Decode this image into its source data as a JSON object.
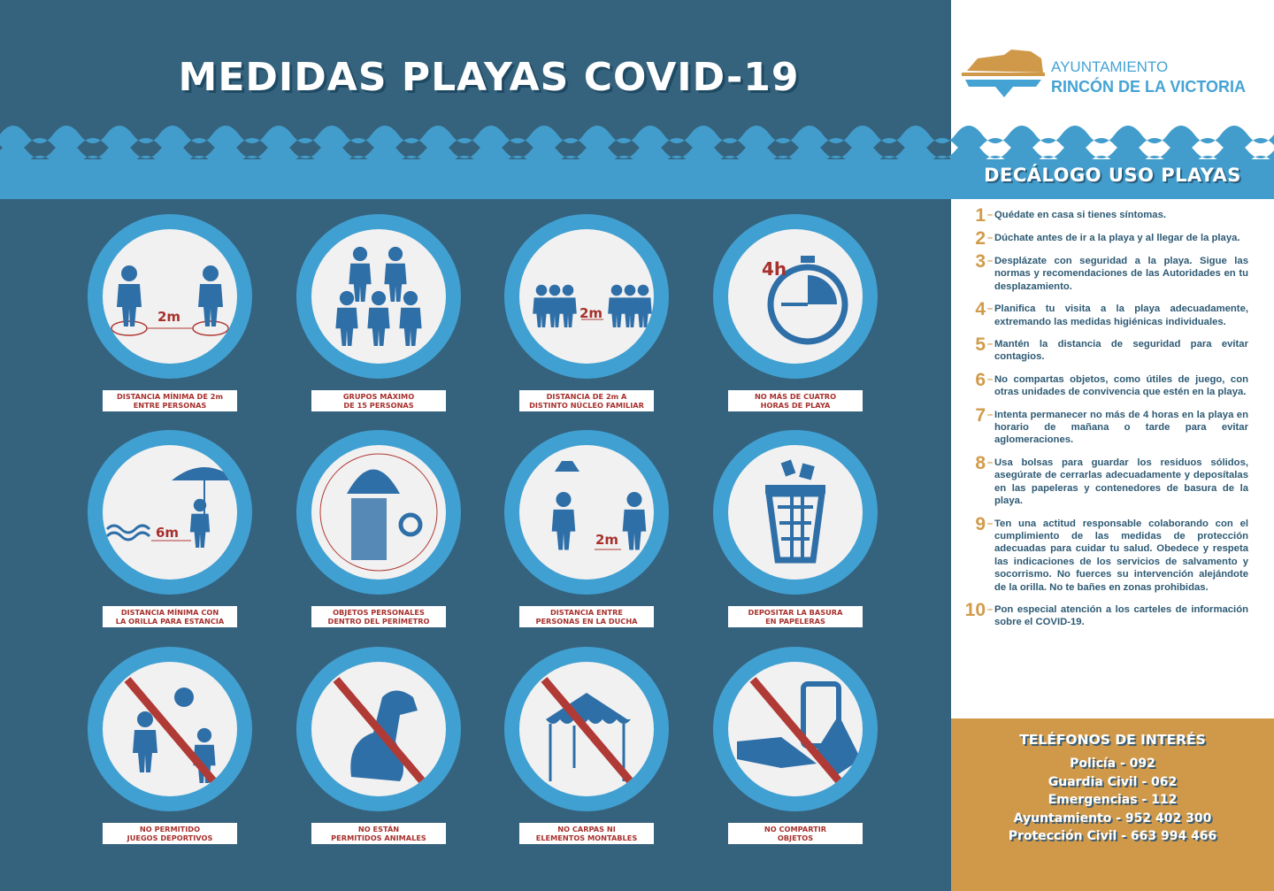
{
  "title": "MEDIDAS PLAYAS COVID-19",
  "logo": {
    "line1": "AYUNTAMIENTO",
    "line2": "RINCÓN DE LA VICTORIA"
  },
  "sidebar_title": "DECÁLOGO USO PLAYAS",
  "colors": {
    "background": "#35637e",
    "accent_blue": "#41a0d2",
    "gold": "#d0994a",
    "label_red": "#a7312d",
    "text": "#2d5a74"
  },
  "measures": [
    {
      "icon": "distance-2m-icon",
      "label1": "DISTANCIA MÍNIMA DE 2m",
      "label2": "ENTRE PERSONAS",
      "tag": "2m"
    },
    {
      "icon": "group-icon",
      "label1": "GRUPOS MÁXIMO",
      "label2": "DE 15 PERSONAS"
    },
    {
      "icon": "family-distance-icon",
      "label1": "DISTANCIA DE 2m A",
      "label2": "DISTINTO NÚCLEO FAMILIAR",
      "tag": "2m"
    },
    {
      "icon": "stopwatch-icon",
      "label1": "NO MÁS DE CUATRO",
      "label2": "HORAS DE PLAYA",
      "tag": "4h"
    },
    {
      "icon": "umbrella-shore-icon",
      "label1": "DISTANCIA MÍNIMA CON",
      "label2": "LA ORILLA PARA ESTANCIA",
      "tag": "6m"
    },
    {
      "icon": "personal-items-icon",
      "label1": "OBJETOS PERSONALES",
      "label2": "DENTRO DEL PERÍMETRO"
    },
    {
      "icon": "shower-distance-icon",
      "label1": "DISTANCIA ENTRE",
      "label2": "PERSONAS EN LA DUCHA",
      "tag": "2m"
    },
    {
      "icon": "trash-bin-icon",
      "label1": "DEPOSITAR LA BASURA",
      "label2": "EN PAPELERAS"
    },
    {
      "icon": "no-ball-games-icon",
      "label1": "NO PERMITIDO",
      "label2": "JUEGOS DEPORTIVOS"
    },
    {
      "icon": "no-dogs-icon",
      "label1": "NO ESTÁN",
      "label2": "PERMITIDOS ANIMALES"
    },
    {
      "icon": "no-tents-icon",
      "label1": "NO CARPAS NI",
      "label2": "ELEMENTOS MONTABLES"
    },
    {
      "icon": "no-sharing-icon",
      "label1": "NO COMPARTIR",
      "label2": "OBJETOS"
    }
  ],
  "decalogue": [
    {
      "n": "1",
      "text": "Quédate en casa si tienes síntomas."
    },
    {
      "n": "2",
      "text": "Dúchate antes de ir a la playa y al llegar de la playa."
    },
    {
      "n": "3",
      "text": "Desplázate con seguridad a la playa. Sigue las normas y recomendaciones de las Autoridades en tu desplazamiento."
    },
    {
      "n": "4",
      "text": "Planifica tu visita a la playa adecuadamente, extremando las medidas higiénicas individuales."
    },
    {
      "n": "5",
      "text": "Mantén la distancia de seguridad para evitar contagios."
    },
    {
      "n": "6",
      "text": "No compartas objetos, como útiles de juego, con otras unidades de convivencia que estén en la playa."
    },
    {
      "n": "7",
      "text": "Intenta permanecer no más de 4 horas en la playa en horario de mañana o tarde para evitar aglomeraciones."
    },
    {
      "n": "8",
      "text": "Usa bolsas para guardar los residuos sólidos, asegúrate de cerrarlas adecuadamente y deposítalas en las papeleras y contenedores de basura de la playa."
    },
    {
      "n": "9",
      "text": "Ten una actitud responsable colaborando con el cumplimiento de las medidas de protección adecuadas para cuidar tu salud. Obedece y respeta las indicaciones de los servicios de salvamento y socorrismo. No fuerces su intervención alejándote de la orilla. No te bañes en zonas prohibidas."
    },
    {
      "n": "10",
      "text": "Pon especial atención a los carteles de información sobre el COVID-19."
    }
  ],
  "phones": {
    "title": "TELÉFONOS DE INTERÉS",
    "items": [
      "Policía - 092",
      "Guardia Civil - 062",
      "Emergencias - 112",
      "Ayuntamiento - 952 402 300",
      "Protección Civil - 663 994 466"
    ]
  }
}
